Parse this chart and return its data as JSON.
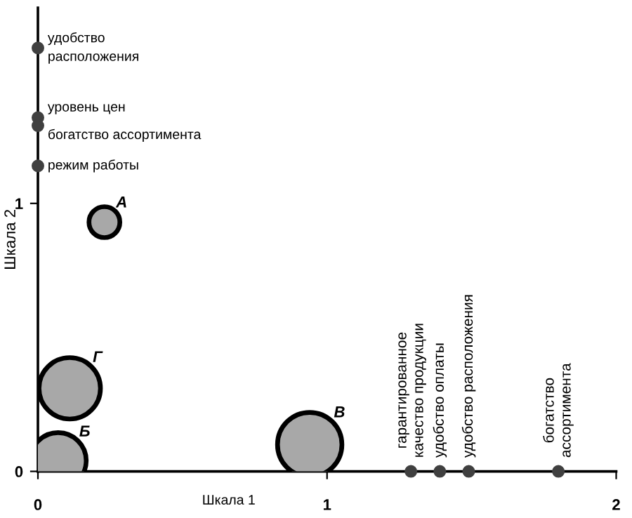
{
  "chart_data": {
    "type": "bubble",
    "xlabel": "Шкала 1",
    "ylabel": "Шкала 2",
    "xlim": [
      0,
      2
    ],
    "ylim": [
      0,
      1.73
    ],
    "xticks": [
      0,
      1,
      2
    ],
    "yticks": [
      0,
      1
    ],
    "grid": false,
    "marker": "circle",
    "series": [
      {
        "color": "#a8a8a8",
        "x": [
          0.23,
          0.07,
          0.94,
          0.11
        ],
        "values": [
          0.93,
          0.04,
          0.1,
          0.31
        ],
        "sizes": [
          0.23,
          0.76,
          1,
          0.91
        ],
        "value_labels": [
          "А",
          "Б",
          "В",
          "Г"
        ]
      },
      {
        "type": "scatter",
        "color": "#404040",
        "x": [
          0,
          0,
          0,
          0,
          1.29,
          1.39,
          1.49,
          1.8
        ],
        "values": [
          1.58,
          1.32,
          1.29,
          1.14,
          0,
          0,
          0,
          0
        ],
        "value_labels": [
          "удобство\nрасположения",
          "уровень цен",
          "богатство ассортимента",
          "режим работы",
          "гарантированное\nкачество продукции",
          "удобство оплаты",
          "удобство расположения",
          "богатство\nассортимента"
        ]
      }
    ]
  }
}
